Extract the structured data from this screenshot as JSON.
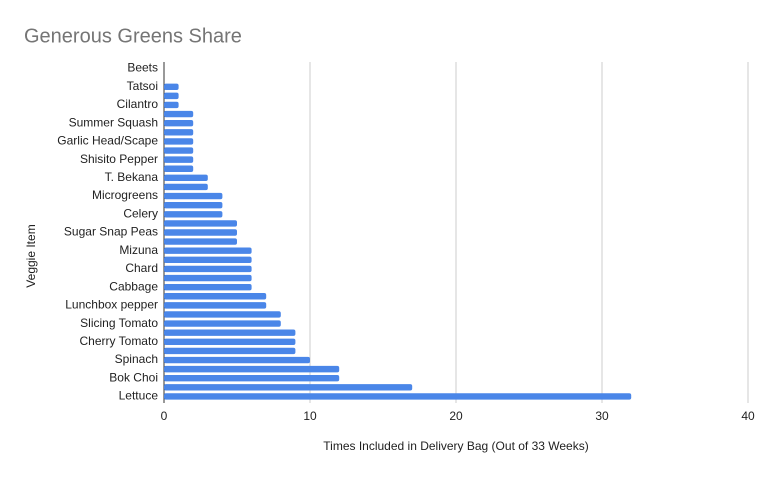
{
  "chart_data": {
    "type": "hbar",
    "title": "Generous Greens Share",
    "x_label": "Times Included in Delivery Bag (Out of 33 Weeks)",
    "y_label": "Veggie Item",
    "categories": [
      "Beets",
      null,
      "Tatsoi",
      null,
      "Cilantro",
      null,
      "Summer Squash",
      null,
      "Garlic Head/Scape",
      null,
      "Shisito Pepper",
      null,
      "T. Bekana",
      null,
      "Microgreens",
      null,
      "Celery",
      null,
      "Sugar Snap Peas",
      null,
      "Mizuna",
      null,
      "Chard",
      null,
      "Cabbage",
      null,
      "Lunchbox pepper",
      null,
      "Slicing Tomato",
      null,
      "Cherry Tomato",
      null,
      "Spinach",
      null,
      "Bok Choi",
      null,
      "Lettuce"
    ],
    "values": [
      0,
      0,
      1,
      1,
      1,
      2,
      2,
      2,
      2,
      2,
      2,
      2,
      3,
      3,
      4,
      4,
      4,
      5,
      5,
      5,
      6,
      6,
      6,
      6,
      6,
      7,
      7,
      8,
      8,
      9,
      9,
      9,
      10,
      12,
      12,
      17,
      32
    ],
    "color": "#4a86e8",
    "xlim": [
      0,
      40
    ],
    "xticks": [
      0,
      10,
      20,
      30,
      40
    ],
    "grid": true
  }
}
